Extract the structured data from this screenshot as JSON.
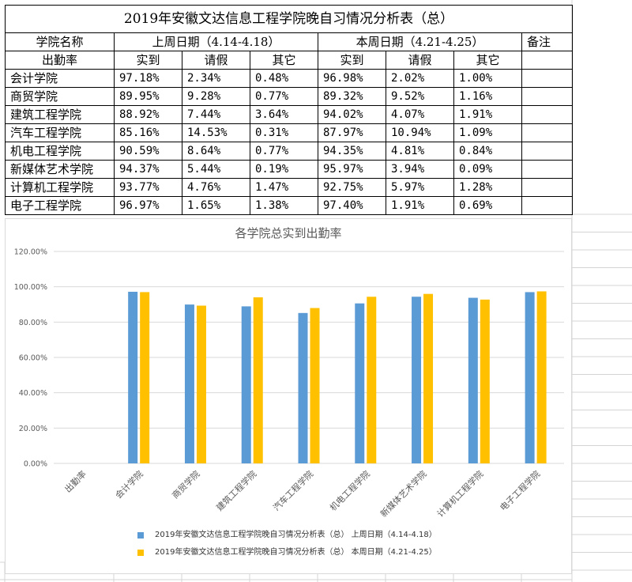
{
  "table": {
    "title": "2019年安徽文达信息工程学院晚自习情况分析表（总）",
    "header1": {
      "college": "学院名称",
      "last_week": "上周日期（4.14-4.18）",
      "this_week": "本周日期（4.21-4.25）",
      "remark": "备注"
    },
    "header2": {
      "rate": "出勤率",
      "present": "实到",
      "leave": "请假",
      "other": "其它"
    },
    "rows": [
      {
        "name": "会计学院",
        "lw": [
          "97.18%",
          "2.34%",
          "0.48%"
        ],
        "tw": [
          "96.98%",
          "2.02%",
          "1.00%"
        ]
      },
      {
        "name": "商贸学院",
        "lw": [
          "89.95%",
          "9.28%",
          "0.77%"
        ],
        "tw": [
          "89.32%",
          "9.52%",
          "1.16%"
        ]
      },
      {
        "name": "建筑工程学院",
        "lw": [
          "88.92%",
          "7.44%",
          "3.64%"
        ],
        "tw": [
          "94.02%",
          "4.07%",
          "1.91%"
        ]
      },
      {
        "name": "汽车工程学院",
        "lw": [
          "85.16%",
          "14.53%",
          "0.31%"
        ],
        "tw": [
          "87.97%",
          "10.94%",
          "1.09%"
        ]
      },
      {
        "name": "机电工程学院",
        "lw": [
          "90.59%",
          "8.64%",
          "0.77%"
        ],
        "tw": [
          "94.35%",
          "4.81%",
          "0.84%"
        ]
      },
      {
        "name": "新媒体艺术学院",
        "lw": [
          "94.37%",
          "5.44%",
          "0.19%"
        ],
        "tw": [
          "95.97%",
          "3.94%",
          "0.09%"
        ]
      },
      {
        "name": "计算机工程学院",
        "lw": [
          "93.77%",
          "4.76%",
          "1.47%"
        ],
        "tw": [
          "92.75%",
          "5.97%",
          "1.28%"
        ]
      },
      {
        "name": "电子工程学院",
        "lw": [
          "96.97%",
          "1.65%",
          "1.38%"
        ],
        "tw": [
          "97.40%",
          "1.91%",
          "0.69%"
        ]
      }
    ]
  },
  "chart_data": {
    "type": "bar",
    "title": "各学院总实到出勤率",
    "xlabel": "",
    "ylabel": "",
    "categories": [
      "出勤率",
      "会计学院",
      "商贸学院",
      "建筑工程学院",
      "汽车工程学院",
      "机电工程学院",
      "新媒体艺术学院",
      "计算机工程学院",
      "电子工程学院"
    ],
    "series": [
      {
        "name": "2019年安徽文达信息工程学院晚自习情况分析表（总） 上周日期（4.14-4.18）",
        "color": "#5b9bd5",
        "values": [
          null,
          97.18,
          89.95,
          88.92,
          85.16,
          90.59,
          94.37,
          93.77,
          96.97
        ]
      },
      {
        "name": "2019年安徽文达信息工程学院晚自习情况分析表（总） 本周日期（4.21-4.25）",
        "color": "#ffc000",
        "values": [
          null,
          96.98,
          89.32,
          94.02,
          87.97,
          94.35,
          95.97,
          92.75,
          97.4
        ]
      }
    ],
    "ylim": [
      0,
      120
    ],
    "yticks": [
      "0.00%",
      "20.00%",
      "40.00%",
      "60.00%",
      "80.00%",
      "100.00%",
      "120.00%"
    ],
    "grid": true,
    "legend_position": "bottom"
  }
}
